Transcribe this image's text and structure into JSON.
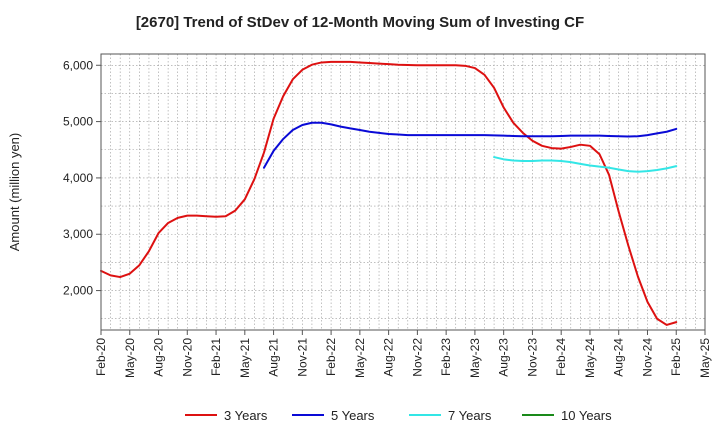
{
  "chart_data": {
    "type": "line",
    "title": "[2670]  Trend of StDev of 12-Month Moving Sum of Investing CF",
    "xlabel": "",
    "ylabel": "Amount (million yen)",
    "ylim": [
      1300,
      6200
    ],
    "yticks": [
      2000,
      3000,
      4000,
      5000,
      6000
    ],
    "ytick_labels": [
      "2,000",
      "3,000",
      "4,000",
      "5,000",
      "6,000"
    ],
    "x_start": "Feb-20",
    "x_tick_labels": [
      "Feb-20",
      "May-20",
      "Aug-20",
      "Nov-20",
      "Feb-21",
      "May-21",
      "Aug-21",
      "Nov-21",
      "Feb-22",
      "May-22",
      "Aug-22",
      "Nov-22",
      "Feb-23",
      "May-23",
      "Aug-23",
      "Nov-23",
      "Feb-24",
      "May-24",
      "Aug-24",
      "Nov-24",
      "Feb-25",
      "May-25"
    ],
    "grid": true,
    "legend_position": "bottom",
    "series": [
      {
        "name": "3 Years",
        "color": "#dd1111",
        "x": [
          "Feb-20",
          "Mar-20",
          "Apr-20",
          "May-20",
          "Jun-20",
          "Jul-20",
          "Aug-20",
          "Sep-20",
          "Oct-20",
          "Nov-20",
          "Dec-20",
          "Jan-21",
          "Feb-21",
          "Mar-21",
          "Apr-21",
          "May-21",
          "Jun-21",
          "Jul-21",
          "Aug-21",
          "Sep-21",
          "Oct-21",
          "Nov-21",
          "Dec-21",
          "Jan-22",
          "Feb-22",
          "Mar-22",
          "Apr-22",
          "May-22",
          "Jun-22",
          "Jul-22",
          "Aug-22",
          "Sep-22",
          "Oct-22",
          "Nov-22",
          "Dec-22",
          "Jan-23",
          "Feb-23",
          "Mar-23",
          "Apr-23",
          "May-23",
          "Jun-23",
          "Jul-23",
          "Aug-23",
          "Sep-23",
          "Oct-23",
          "Nov-23",
          "Dec-23",
          "Jan-24",
          "Feb-24",
          "Mar-24",
          "Apr-24",
          "May-24",
          "Jun-24",
          "Jul-24",
          "Aug-24",
          "Sep-24",
          "Oct-24",
          "Nov-24",
          "Dec-24",
          "Jan-25",
          "Feb-25"
        ],
        "values": [
          2350,
          2270,
          2240,
          2300,
          2450,
          2700,
          3020,
          3200,
          3290,
          3330,
          3330,
          3320,
          3310,
          3320,
          3420,
          3620,
          3980,
          4450,
          5050,
          5450,
          5750,
          5920,
          6010,
          6050,
          6060,
          6060,
          6060,
          6050,
          6040,
          6030,
          6020,
          6010,
          6005,
          6000,
          6000,
          6000,
          6000,
          6000,
          5990,
          5950,
          5830,
          5600,
          5250,
          4980,
          4800,
          4660,
          4570,
          4530,
          4520,
          4550,
          4590,
          4570,
          4420,
          4050,
          3400,
          2800,
          2250,
          1800,
          1500,
          1390,
          1440
        ]
      },
      {
        "name": "5 Years",
        "color": "#0a0ad6",
        "x": [
          "Feb-21",
          "Mar-21",
          "Apr-21",
          "May-21",
          "Jun-21",
          "Jul-21",
          "Aug-21",
          "Sep-21",
          "Oct-21",
          "Nov-21",
          "Dec-21",
          "Jan-22",
          "Feb-22",
          "Mar-22",
          "Apr-22",
          "May-22",
          "Jun-22",
          "Jul-22",
          "Aug-22",
          "Sep-22",
          "Oct-22",
          "Nov-22",
          "Dec-22",
          "Jan-23",
          "Feb-23",
          "Mar-23",
          "Apr-23",
          "May-23",
          "Jun-23",
          "Jul-23",
          "Aug-23",
          "Sep-23",
          "Oct-23",
          "Nov-23",
          "Dec-23",
          "Jan-24",
          "Feb-24",
          "Mar-24",
          "Apr-24",
          "May-24",
          "Jun-24",
          "Jul-24",
          "Aug-24",
          "Sep-24",
          "Oct-24",
          "Nov-24",
          "Dec-24",
          "Jan-25",
          "Feb-25"
        ],
        "values": [
          null,
          null,
          null,
          null,
          null,
          4180,
          4480,
          4690,
          4850,
          4940,
          4980,
          4980,
          4950,
          4910,
          4880,
          4850,
          4820,
          4800,
          4780,
          4770,
          4760,
          4760,
          4760,
          4760,
          4760,
          4760,
          4760,
          4760,
          4760,
          4755,
          4750,
          4745,
          4740,
          4740,
          4740,
          4740,
          4745,
          4750,
          4750,
          4750,
          4750,
          4745,
          4740,
          4735,
          4740,
          4760,
          4790,
          4820,
          4870
        ]
      },
      {
        "name": "7 Years",
        "color": "#33e6e6",
        "x": [
          "Jul-23",
          "Aug-23",
          "Sep-23",
          "Oct-23",
          "Nov-23",
          "Dec-23",
          "Jan-24",
          "Feb-24",
          "Mar-24",
          "Apr-24",
          "May-24",
          "Jun-24",
          "Jul-24",
          "Aug-24",
          "Sep-24",
          "Oct-24",
          "Nov-24",
          "Dec-24",
          "Jan-25",
          "Feb-25"
        ],
        "values": [
          4370,
          4330,
          4310,
          4300,
          4300,
          4310,
          4310,
          4300,
          4280,
          4250,
          4220,
          4200,
          4180,
          4150,
          4120,
          4110,
          4120,
          4140,
          4170,
          4210
        ]
      },
      {
        "name": "10 Years",
        "color": "#1a8a1a",
        "x": [],
        "values": []
      }
    ]
  }
}
